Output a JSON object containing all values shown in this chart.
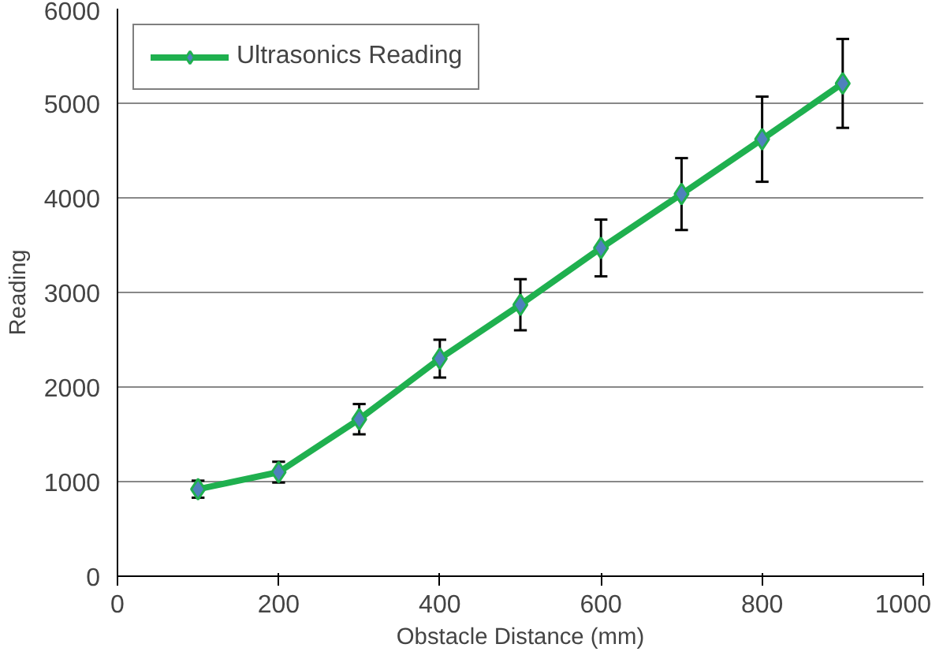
{
  "chart_data": {
    "type": "line",
    "xlabel": "Obstacle Distance (mm)",
    "ylabel": "Reading",
    "x": [
      100,
      200,
      300,
      400,
      500,
      600,
      700,
      800,
      900
    ],
    "series": [
      {
        "name": "Ultrasonics Reading",
        "color": "#1fb04f",
        "values": [
          920,
          1100,
          1660,
          2300,
          2870,
          3470,
          4040,
          4620,
          5210
        ],
        "errors": [
          90,
          110,
          160,
          200,
          270,
          300,
          380,
          450,
          470
        ]
      }
    ],
    "xlim": [
      0,
      1000
    ],
    "xticks": [
      0,
      200,
      400,
      600,
      800,
      1000
    ],
    "ylim": [
      0,
      6000
    ],
    "yticks": [
      0,
      1000,
      2000,
      3000,
      4000,
      5000,
      6000
    ],
    "grid": "y",
    "legend": "top left",
    "marker": "diamond",
    "line_style": "solid"
  }
}
